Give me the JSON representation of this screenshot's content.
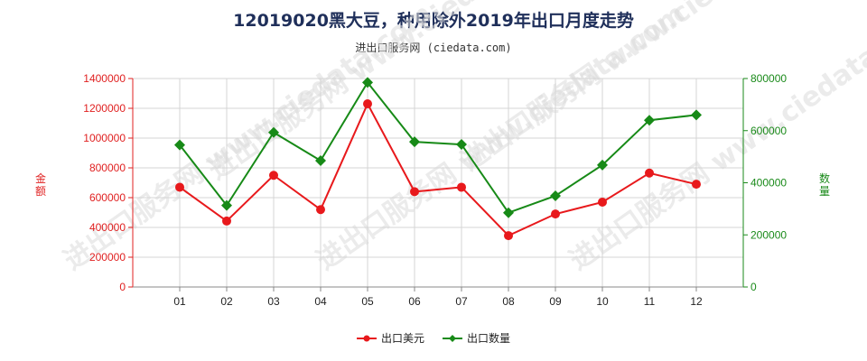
{
  "title": "12019020黑大豆，种用除外2019年出口月度走势",
  "subtitle": "进出口服务网 (ciedata.com)",
  "watermark": "进出口服务网 www.ciedata.com",
  "chart_data": {
    "type": "line",
    "categories": [
      "01",
      "02",
      "03",
      "04",
      "05",
      "06",
      "07",
      "08",
      "09",
      "10",
      "11",
      "12"
    ],
    "ylabel_left": "金额",
    "ylabel_right": "数量",
    "ylim_left": [
      0,
      1400000
    ],
    "ylim_right": [
      0,
      800000
    ],
    "yticks_left": [
      "0",
      "200000",
      "400000",
      "600000",
      "800000",
      "1000000",
      "1200000",
      "1400000"
    ],
    "yticks_right": [
      "0",
      "200000",
      "400000",
      "600000",
      "800000"
    ],
    "grid": true,
    "legend_position": "bottom",
    "series": [
      {
        "name": "出口美元",
        "axis": "left",
        "color": "#e8191c",
        "marker": "circle",
        "values": [
          670000,
          443000,
          750000,
          520000,
          1230000,
          640000,
          670000,
          345000,
          490000,
          570000,
          765000,
          690000
        ]
      },
      {
        "name": "出口数量",
        "axis": "right",
        "color": "#178a17",
        "marker": "diamond",
        "values": [
          545000,
          313000,
          593000,
          485000,
          785000,
          557000,
          547000,
          285000,
          350000,
          468000,
          640000,
          660000
        ]
      }
    ]
  }
}
